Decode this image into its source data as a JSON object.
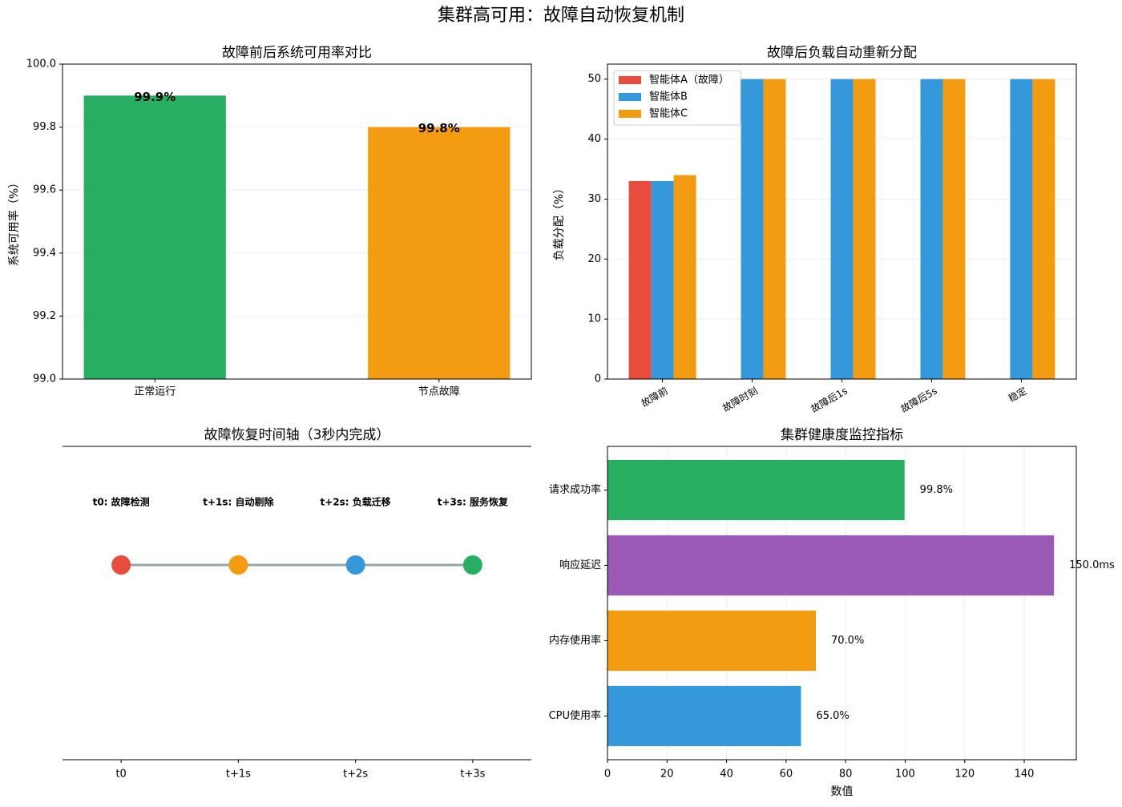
{
  "title": "集群高可用：故障自动恢复机制",
  "chart_data": [
    {
      "type": "bar",
      "title": "故障前后系统可用率对比",
      "ylabel": "系统可用率（%）",
      "categories": [
        "正常运行",
        "节点故障"
      ],
      "values": [
        99.9,
        99.8
      ],
      "value_labels": [
        "99.9%",
        "99.8%"
      ],
      "colors": [
        "#27ae60",
        "#f39c12"
      ],
      "ylim": [
        99.0,
        100.0
      ],
      "yticks": [
        {
          "value": 99,
          "label": "99.0"
        },
        99.2,
        99.4,
        99.6,
        99.8,
        {
          "value": 100,
          "label": "100.0"
        }
      ],
      "grid": true
    },
    {
      "type": "bar",
      "title": "故障后负载自动重新分配",
      "ylabel": "负载分配（%）",
      "categories": [
        "故障前",
        "故障时刻",
        "故障后1s",
        "故障后5s",
        "稳定"
      ],
      "series": [
        {
          "name": "智能体A（故障）",
          "color": "#e74c3c",
          "values": [
            33,
            0,
            0,
            0,
            0
          ]
        },
        {
          "name": "智能体B",
          "color": "#3498db",
          "values": [
            33,
            50,
            50,
            50,
            50
          ]
        },
        {
          "name": "智能体C",
          "color": "#f39c12",
          "values": [
            34,
            50,
            50,
            50,
            50
          ]
        }
      ],
      "ylim": [
        0,
        52.5
      ],
      "yticks": [
        0,
        10,
        20,
        30,
        40,
        50
      ],
      "grid": true,
      "legend": "upper left"
    },
    {
      "type": "timeline",
      "title": "故障恢复时间轴（3秒内完成）",
      "categories": [
        "t0",
        "t+1s",
        "t+2s",
        "t+3s"
      ],
      "events": [
        "t0: 故障检测",
        "t+1s: 自动剔除",
        "t+2s: 负载迁移",
        "t+3s: 服务恢复"
      ],
      "colors": [
        "#e74c3c",
        "#f39c12",
        "#3498db",
        "#27ae60"
      ],
      "line_color": "#95a5a6"
    },
    {
      "type": "barh",
      "title": "集群健康度监控指标",
      "xlabel": "数值",
      "categories": [
        "CPU使用率",
        "内存使用率",
        "响应延迟",
        "请求成功率"
      ],
      "values": [
        65,
        70,
        150,
        99.8
      ],
      "value_labels": [
        "65.0%",
        "70.0%",
        "150.0ms",
        "99.8%"
      ],
      "colors": [
        "#3498db",
        "#f39c12",
        "#9b59b6",
        "#27ae60"
      ],
      "xlim": [
        0,
        157.5
      ],
      "xticks": [
        0,
        20,
        40,
        60,
        80,
        100,
        120,
        140
      ],
      "grid": true
    }
  ]
}
